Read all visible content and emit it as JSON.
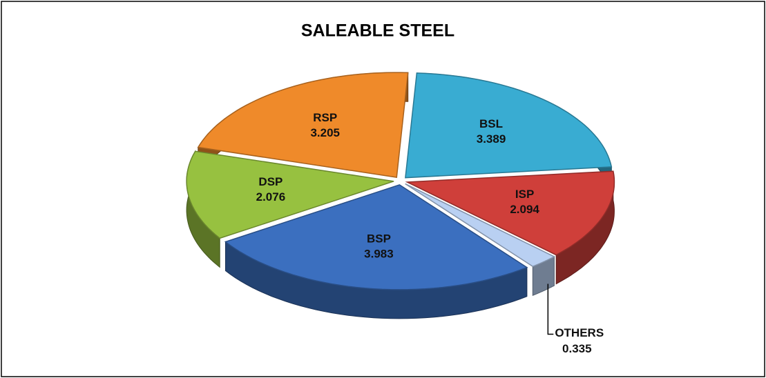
{
  "chart_data": {
    "type": "pie",
    "title": "SALEABLE  STEEL",
    "categories": [
      "BSL",
      "ISP",
      "OTHERS",
      "BSP",
      "DSP",
      "RSP"
    ],
    "values": [
      3.389,
      2.094,
      0.335,
      3.983,
      2.076,
      3.205
    ],
    "colors": [
      "#39acd2",
      "#cf3f3a",
      "#b9d0f2",
      "#3b6fbf",
      "#97c140",
      "#ef8a2a"
    ]
  }
}
